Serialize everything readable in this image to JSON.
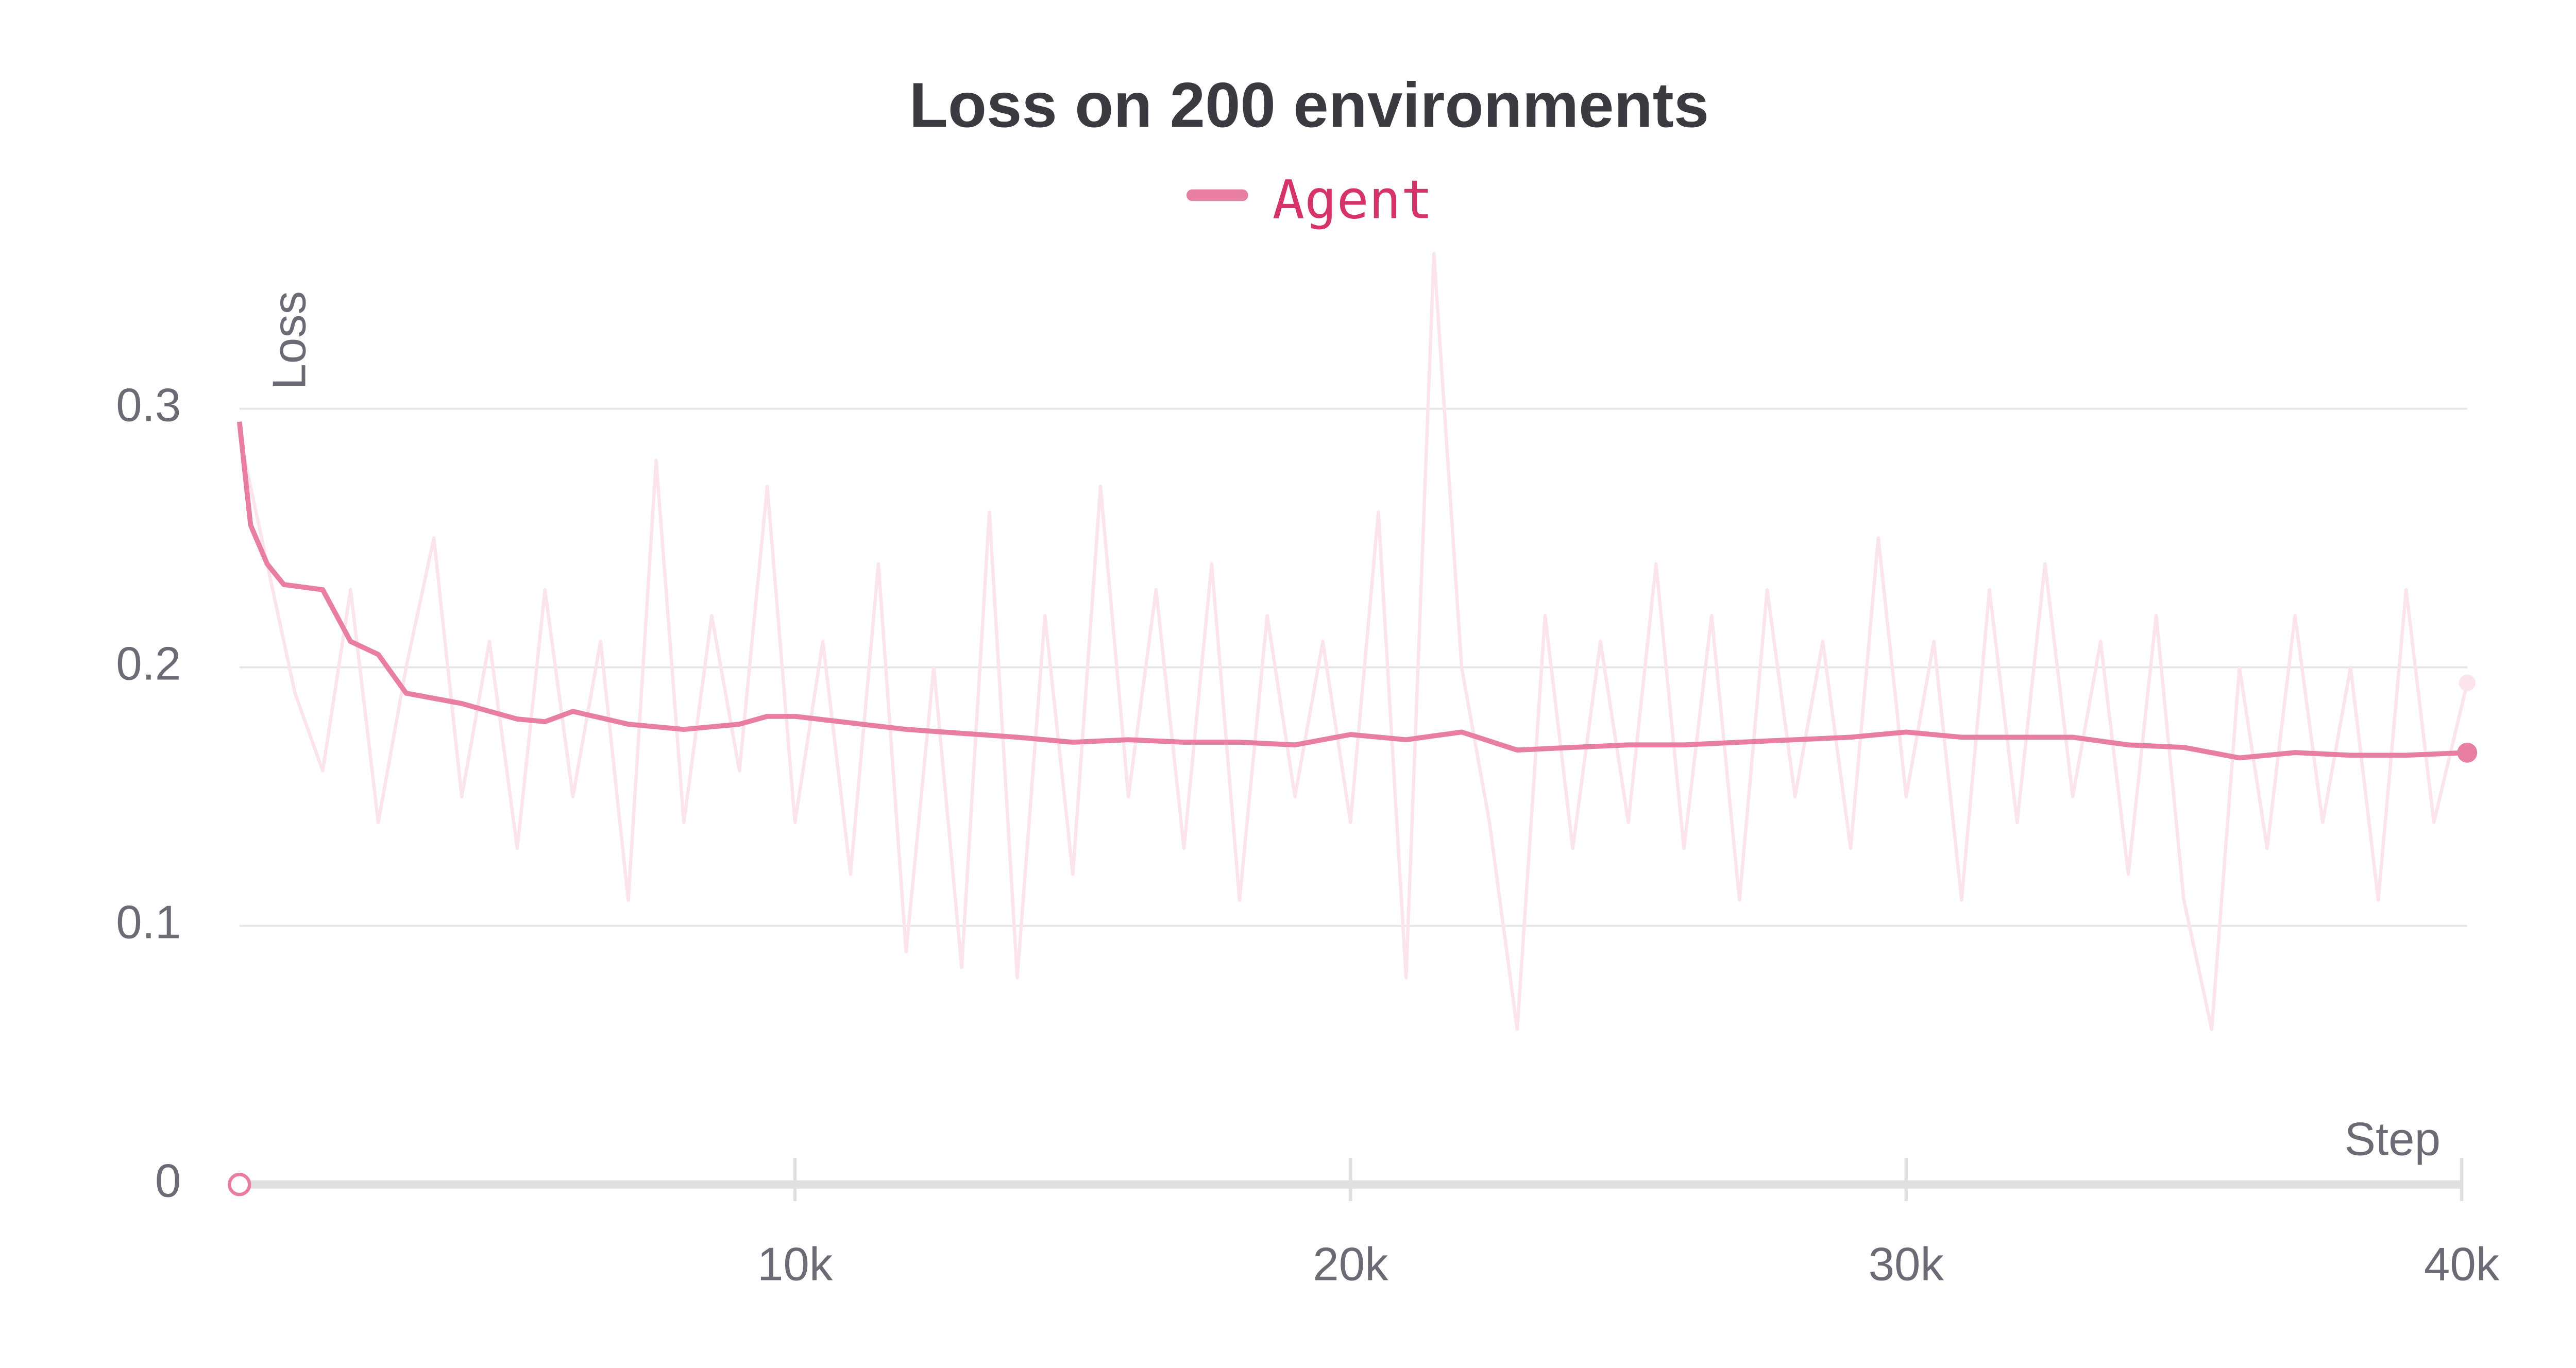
{
  "chart_data": {
    "type": "line",
    "title": "Loss on 200 environments",
    "xlabel": "Step",
    "ylabel": "Loss",
    "xlim": [
      0,
      40100
    ],
    "ylim": [
      0,
      0.36
    ],
    "xticks": [
      {
        "value": 10000,
        "label": "10k"
      },
      {
        "value": 20000,
        "label": "20k"
      },
      {
        "value": 30000,
        "label": "30k"
      },
      {
        "value": 40000,
        "label": "40k"
      }
    ],
    "yticks": [
      0,
      0.1,
      0.2,
      0.3
    ],
    "grid": true,
    "legend": "top",
    "series": [
      {
        "color": "#fbe4ec",
        "x": [
          0,
          500,
          1000,
          1500,
          2000,
          2500,
          3000,
          3500,
          4000,
          4500,
          5000,
          5500,
          6000,
          6500,
          7000,
          7500,
          8000,
          8500,
          9000,
          9500,
          10000,
          10500,
          11000,
          11500,
          12000,
          12500,
          13000,
          13500,
          14000,
          14500,
          15000,
          15500,
          16000,
          16500,
          17000,
          17500,
          18000,
          18500,
          19000,
          19500,
          20000,
          20500,
          21000,
          21500,
          22000,
          22500,
          23000,
          23500,
          24000,
          24500,
          25000,
          25500,
          26000,
          26500,
          27000,
          27500,
          28000,
          28500,
          29000,
          29500,
          30000,
          30500,
          31000,
          31500,
          32000,
          32500,
          33000,
          33500,
          34000,
          34500,
          35000,
          35500,
          36000,
          36500,
          37000,
          37500,
          38000,
          38500,
          39000,
          39500,
          40100
        ],
        "values": [
          0.29,
          0.24,
          0.19,
          0.16,
          0.23,
          0.14,
          0.2,
          0.25,
          0.15,
          0.21,
          0.13,
          0.23,
          0.15,
          0.21,
          0.11,
          0.28,
          0.14,
          0.22,
          0.16,
          0.27,
          0.14,
          0.21,
          0.12,
          0.24,
          0.09,
          0.2,
          0.084,
          0.26,
          0.08,
          0.22,
          0.12,
          0.27,
          0.15,
          0.23,
          0.13,
          0.24,
          0.11,
          0.22,
          0.15,
          0.21,
          0.14,
          0.26,
          0.08,
          0.36,
          0.2,
          0.14,
          0.06,
          0.22,
          0.13,
          0.21,
          0.14,
          0.24,
          0.13,
          0.22,
          0.11,
          0.23,
          0.15,
          0.21,
          0.13,
          0.25,
          0.15,
          0.21,
          0.11,
          0.23,
          0.14,
          0.24,
          0.15,
          0.21,
          0.12,
          0.22,
          0.11,
          0.06,
          0.2,
          0.13,
          0.22,
          0.14,
          0.2,
          0.11,
          0.23,
          0.14,
          0.194
        ]
      },
      {
        "name": "Agent",
        "color": "#e87ea1",
        "x": [
          0,
          200,
          500,
          800,
          1500,
          2000,
          2500,
          3000,
          4000,
          5000,
          5500,
          6000,
          7000,
          8000,
          9000,
          9500,
          10000,
          12000,
          14000,
          15000,
          16000,
          17000,
          18000,
          19000,
          20000,
          21000,
          22000,
          23000,
          24000,
          25000,
          26000,
          27000,
          28000,
          29000,
          30000,
          31000,
          32000,
          33000,
          34000,
          35000,
          36000,
          37000,
          38000,
          39000,
          40100
        ],
        "values": [
          0.295,
          0.255,
          0.24,
          0.232,
          0.23,
          0.21,
          0.205,
          0.19,
          0.186,
          0.18,
          0.179,
          0.183,
          0.178,
          0.176,
          0.178,
          0.181,
          0.181,
          0.176,
          0.173,
          0.171,
          0.172,
          0.171,
          0.171,
          0.17,
          0.174,
          0.172,
          0.175,
          0.168,
          0.169,
          0.17,
          0.17,
          0.171,
          0.172,
          0.173,
          0.175,
          0.173,
          0.173,
          0.173,
          0.17,
          0.169,
          0.165,
          0.167,
          0.166,
          0.166,
          0.167
        ]
      }
    ]
  }
}
